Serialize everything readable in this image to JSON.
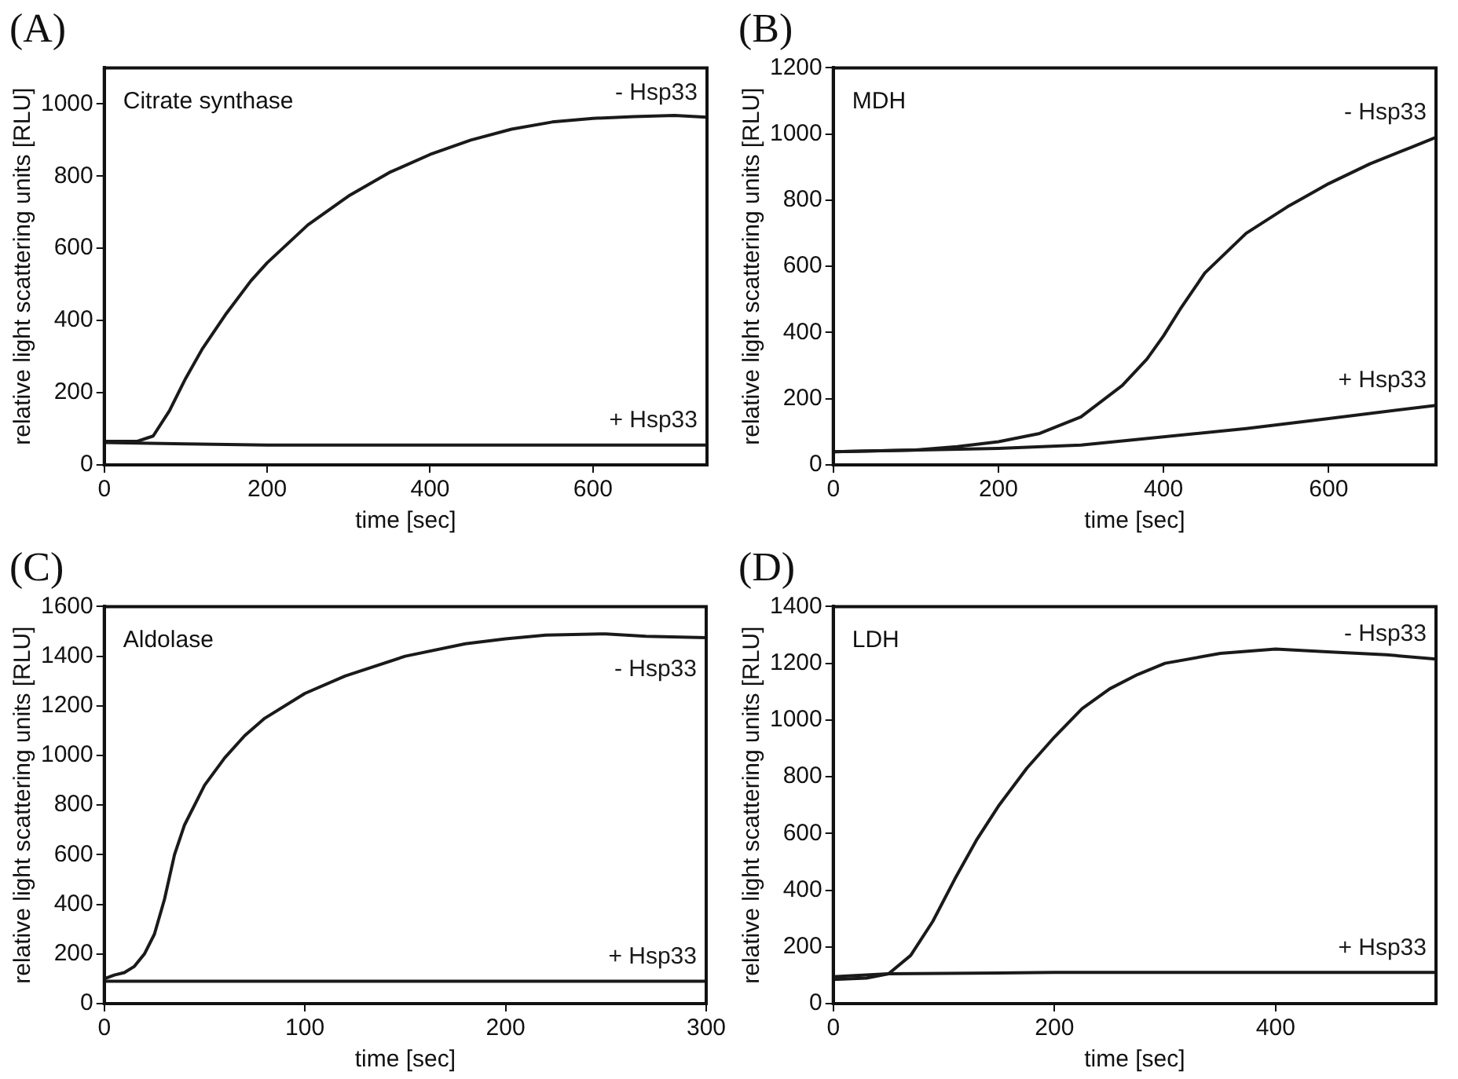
{
  "chart_data": [
    {
      "type": "line",
      "title": "(A)",
      "xlabel": "time [sec]",
      "ylabel": "relative light scattering units [RLU]",
      "annotations": [
        "Citrate synthase"
      ],
      "xlim": [
        0,
        740
      ],
      "xticks": [
        0,
        200,
        400,
        600
      ],
      "ylim": [
        0,
        1100
      ],
      "yticks": [
        0,
        200,
        400,
        600,
        800,
        1000
      ],
      "grid": false,
      "legend": false,
      "marker": "none",
      "line_style": "solid",
      "series": [
        {
          "name": "- Hsp33",
          "color": "#1a1a1a",
          "x": [
            0,
            20,
            40,
            60,
            80,
            100,
            120,
            150,
            180,
            200,
            250,
            300,
            350,
            400,
            450,
            500,
            550,
            600,
            650,
            700,
            740
          ],
          "values": [
            65,
            65,
            65,
            80,
            150,
            240,
            320,
            420,
            510,
            560,
            665,
            745,
            810,
            860,
            900,
            930,
            950,
            960,
            965,
            968,
            963
          ]
        },
        {
          "name": "+ Hsp33",
          "color": "#1a1a1a",
          "x": [
            0,
            100,
            200,
            400,
            600,
            740
          ],
          "values": [
            62,
            58,
            55,
            55,
            55,
            55
          ]
        }
      ]
    },
    {
      "type": "line",
      "title": "(B)",
      "xlabel": "time [sec]",
      "ylabel": "relative light scattering units [RLU]",
      "annotations": [
        "MDH"
      ],
      "xlim": [
        0,
        730
      ],
      "xticks": [
        0,
        200,
        400,
        600
      ],
      "ylim": [
        0,
        1200
      ],
      "yticks": [
        0,
        200,
        400,
        600,
        800,
        1000,
        1200
      ],
      "grid": false,
      "legend": false,
      "marker": "none",
      "line_style": "solid",
      "series": [
        {
          "name": "- Hsp33",
          "color": "#1a1a1a",
          "x": [
            0,
            100,
            150,
            200,
            250,
            300,
            350,
            380,
            400,
            420,
            450,
            500,
            550,
            600,
            650,
            700,
            730
          ],
          "values": [
            40,
            45,
            55,
            70,
            95,
            145,
            240,
            320,
            390,
            470,
            580,
            700,
            780,
            850,
            910,
            960,
            990
          ]
        },
        {
          "name": "+ Hsp33",
          "color": "#1a1a1a",
          "x": [
            0,
            200,
            300,
            400,
            500,
            600,
            730
          ],
          "values": [
            40,
            50,
            60,
            85,
            110,
            140,
            180
          ]
        }
      ]
    },
    {
      "type": "line",
      "title": "(C)",
      "xlabel": "time [sec]",
      "ylabel": "relative light scattering units [RLU]",
      "annotations": [
        "Aldolase"
      ],
      "xlim": [
        0,
        300
      ],
      "xticks": [
        0,
        100,
        200,
        300
      ],
      "ylim": [
        0,
        1600
      ],
      "yticks": [
        0,
        200,
        400,
        600,
        800,
        1000,
        1200,
        1400,
        1600
      ],
      "grid": false,
      "legend": false,
      "marker": "none",
      "line_style": "solid",
      "series": [
        {
          "name": "- Hsp33",
          "color": "#1a1a1a",
          "x": [
            0,
            5,
            10,
            15,
            20,
            25,
            30,
            35,
            40,
            50,
            60,
            70,
            80,
            100,
            120,
            150,
            180,
            200,
            220,
            250,
            270,
            300
          ],
          "values": [
            100,
            115,
            125,
            150,
            200,
            280,
            420,
            600,
            720,
            880,
            990,
            1080,
            1150,
            1250,
            1320,
            1400,
            1450,
            1470,
            1485,
            1490,
            1480,
            1475
          ]
        },
        {
          "name": "+ Hsp33",
          "color": "#1a1a1a",
          "x": [
            0,
            100,
            300
          ],
          "values": [
            90,
            90,
            90
          ]
        }
      ]
    },
    {
      "type": "line",
      "title": "(D)",
      "xlabel": "time [sec]",
      "ylabel": "relative light scattering units [RLU]",
      "annotations": [
        "LDH"
      ],
      "xlim": [
        0,
        545
      ],
      "xticks": [
        0,
        200,
        400
      ],
      "ylim": [
        0,
        1400
      ],
      "yticks": [
        0,
        200,
        400,
        600,
        800,
        1000,
        1200,
        1400
      ],
      "grid": false,
      "legend": false,
      "marker": "none",
      "line_style": "solid",
      "series": [
        {
          "name": "- Hsp33",
          "color": "#1a1a1a",
          "x": [
            0,
            30,
            50,
            70,
            90,
            110,
            130,
            150,
            175,
            200,
            225,
            250,
            275,
            300,
            350,
            400,
            450,
            500,
            545
          ],
          "values": [
            85,
            90,
            105,
            170,
            290,
            440,
            580,
            700,
            830,
            940,
            1040,
            1110,
            1160,
            1200,
            1235,
            1250,
            1240,
            1230,
            1215
          ]
        },
        {
          "name": "+ Hsp33",
          "color": "#1a1a1a",
          "x": [
            0,
            50,
            200,
            545
          ],
          "values": [
            95,
            105,
            110,
            110
          ]
        }
      ]
    }
  ]
}
